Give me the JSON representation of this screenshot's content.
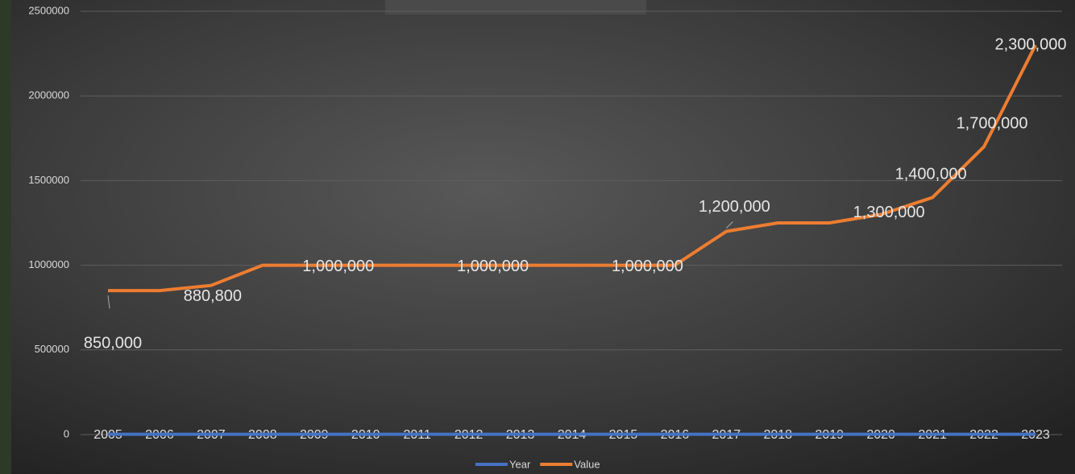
{
  "chart_data": {
    "type": "line",
    "categories": [
      "2005",
      "2006",
      "2007",
      "2008",
      "2009",
      "2010",
      "2011",
      "2012",
      "2013",
      "2014",
      "2015",
      "2016",
      "2017",
      "2018",
      "2019",
      "2020",
      "2021",
      "2022",
      "2023"
    ],
    "series": [
      {
        "name": "Year",
        "color": "#4472c4",
        "values": [
          2005,
          2006,
          2007,
          2008,
          2009,
          2010,
          2011,
          2012,
          2013,
          2014,
          2015,
          2016,
          2017,
          2018,
          2019,
          2020,
          2021,
          2022,
          2023
        ]
      },
      {
        "name": "Value",
        "color": "#ed7d31",
        "values": [
          850000,
          850000,
          880800,
          1000000,
          1000000,
          1000000,
          1000000,
          1000000,
          1000000,
          1000000,
          1000000,
          1000000,
          1200000,
          1250000,
          1250000,
          1300000,
          1400000,
          1700000,
          2300000
        ],
        "value_labels": [
          "850,000",
          null,
          "880,800",
          null,
          "1,000,000",
          null,
          null,
          "1,000,000",
          null,
          null,
          "1,000,000",
          null,
          "1,200,000",
          null,
          null,
          "1,300,000",
          "1,400,000",
          "1,700,000",
          "2,300,000"
        ]
      }
    ],
    "ylim": [
      0,
      2500000
    ],
    "yticks": [
      0,
      500000,
      1000000,
      1500000,
      2000000,
      2500000
    ],
    "grid": true,
    "legend": "bottom"
  }
}
